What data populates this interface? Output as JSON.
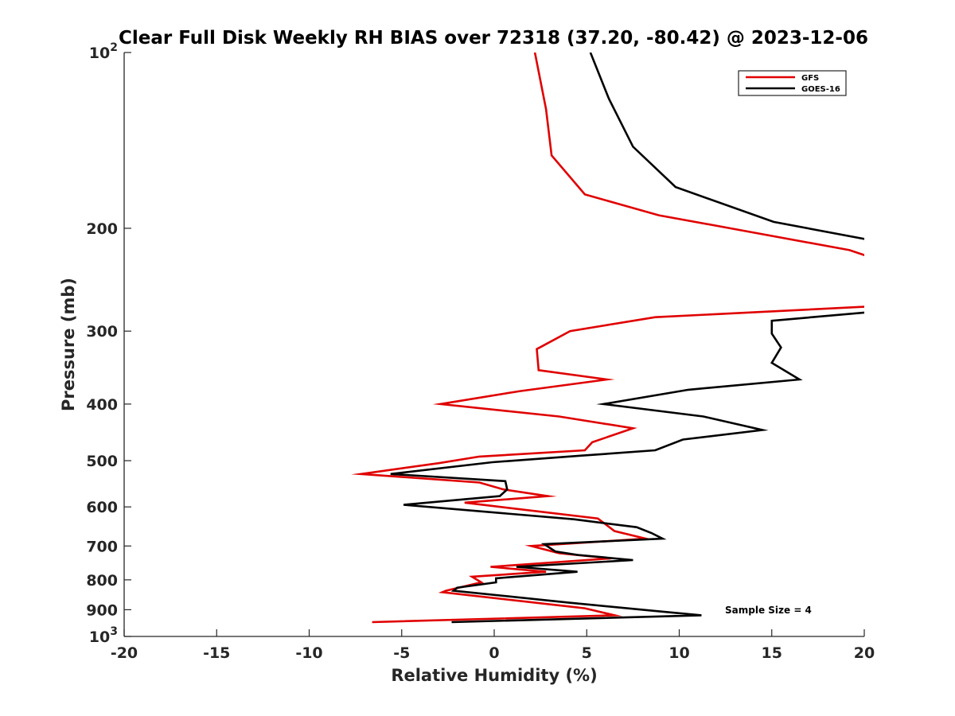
{
  "chart_data": {
    "type": "line",
    "title": "Clear Full Disk Weekly RH BIAS over 72318 (37.20, -80.42) @ 2023-12-06",
    "xlabel": "Relative Humidity (%)",
    "ylabel": "Pressure (mb)",
    "xlim": [
      -20,
      20
    ],
    "ylim": [
      100,
      1000
    ],
    "yscale": "log",
    "y_reversed": true,
    "xticks": [
      -20,
      -15,
      -10,
      -5,
      0,
      5,
      10,
      15,
      20
    ],
    "xtick_labels": [
      "-20",
      "-15",
      "-10",
      "-5",
      "0",
      "5",
      "10",
      "15",
      "20"
    ],
    "yticks": [
      100,
      200,
      300,
      400,
      500,
      600,
      700,
      800,
      900,
      1000
    ],
    "ytick_labels": [
      "10^2",
      "200",
      "300",
      "400",
      "500",
      "600",
      "700",
      "800",
      "900",
      "10^3"
    ],
    "grid": false,
    "legend_position": "top-right",
    "annotation": "Sample Size = 4",
    "series": [
      {
        "name": "GFS",
        "color": "#e00000",
        "points": [
          [
            2.2,
            100
          ],
          [
            2.8,
            125
          ],
          [
            3.1,
            150
          ],
          [
            4.9,
            175
          ],
          [
            8.9,
            190
          ],
          [
            13.5,
            202
          ],
          [
            19.2,
            218
          ],
          [
            20.5,
            225
          ],
          [
            20.5,
            272
          ],
          [
            8.7,
            284
          ],
          [
            4.1,
            300
          ],
          [
            2.3,
            322
          ],
          [
            2.4,
            350
          ],
          [
            6.1,
            363
          ],
          [
            1.4,
            380
          ],
          [
            -2.9,
            400
          ],
          [
            3.5,
            420
          ],
          [
            7.5,
            440
          ],
          [
            5.3,
            465
          ],
          [
            4.9,
            480
          ],
          [
            -0.8,
            492
          ],
          [
            -3.0,
            505
          ],
          [
            -7.2,
            527
          ],
          [
            -0.8,
            545
          ],
          [
            0.5,
            560
          ],
          [
            2.9,
            575
          ],
          [
            -1.6,
            590
          ],
          [
            5.6,
            628
          ],
          [
            6.5,
            660
          ],
          [
            8.2,
            680
          ],
          [
            2.0,
            700
          ],
          [
            3.5,
            720
          ],
          [
            6.3,
            735
          ],
          [
            -0.2,
            760
          ],
          [
            2.8,
            775
          ],
          [
            -1.2,
            790
          ],
          [
            -0.7,
            808
          ],
          [
            -2.6,
            835
          ],
          [
            -2.8,
            840
          ],
          [
            4.9,
            895
          ],
          [
            6.5,
            920
          ],
          [
            -6.6,
            945
          ]
        ]
      },
      {
        "name": "GOES-16",
        "color": "#000000",
        "points": [
          [
            5.2,
            100
          ],
          [
            6.2,
            120
          ],
          [
            7.5,
            145
          ],
          [
            9.8,
            170
          ],
          [
            15.1,
            195
          ],
          [
            20.5,
            210
          ],
          [
            20.5,
            278
          ],
          [
            15.0,
            288
          ],
          [
            15.0,
            303
          ],
          [
            15.5,
            320
          ],
          [
            15.0,
            340
          ],
          [
            16.5,
            363
          ],
          [
            10.5,
            378
          ],
          [
            5.9,
            400
          ],
          [
            11.3,
            420
          ],
          [
            14.5,
            443
          ],
          [
            10.2,
            460
          ],
          [
            8.7,
            480
          ],
          [
            4.8,
            490
          ],
          [
            -0.1,
            503
          ],
          [
            -5.6,
            527
          ],
          [
            0.6,
            542
          ],
          [
            0.7,
            560
          ],
          [
            0.3,
            575
          ],
          [
            -4.9,
            595
          ],
          [
            4.3,
            630
          ],
          [
            7.7,
            650
          ],
          [
            8.5,
            665
          ],
          [
            9.1,
            680
          ],
          [
            2.7,
            695
          ],
          [
            3.3,
            715
          ],
          [
            4.5,
            725
          ],
          [
            7.5,
            740
          ],
          [
            1.2,
            760
          ],
          [
            4.5,
            775
          ],
          [
            0.1,
            795
          ],
          [
            0.1,
            808
          ],
          [
            -2.0,
            825
          ],
          [
            -2.2,
            835
          ],
          [
            4.0,
            875
          ],
          [
            8.8,
            905
          ],
          [
            11.2,
            920
          ],
          [
            -2.3,
            945
          ]
        ]
      }
    ]
  }
}
